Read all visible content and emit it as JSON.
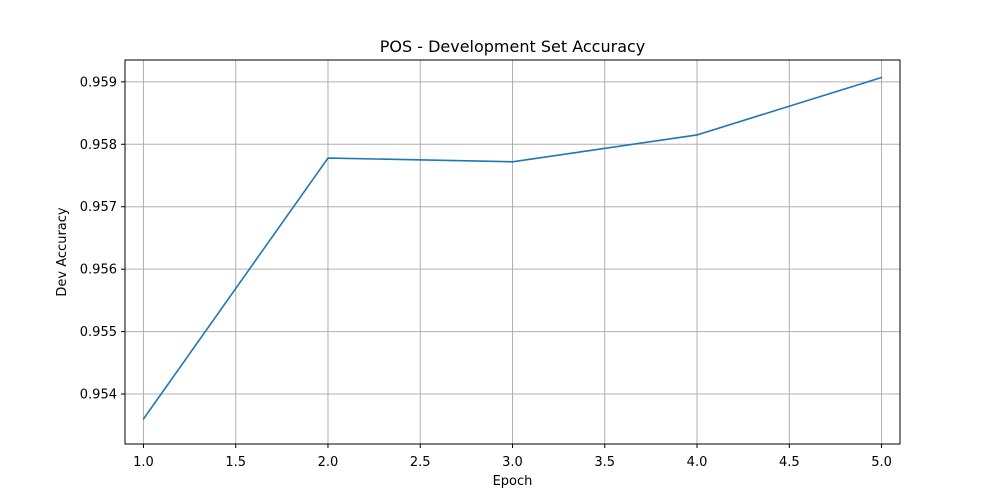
{
  "chart_data": {
    "type": "line",
    "title": "POS - Development Set Accuracy",
    "xlabel": "Epoch",
    "ylabel": "Dev Accuracy",
    "x": [
      1,
      2,
      3,
      4,
      5
    ],
    "series": [
      {
        "values": [
          0.9536,
          0.95778,
          0.95772,
          0.95815,
          0.95907
        ],
        "color": "#1f77b4"
      }
    ],
    "xlim": [
      0.9,
      5.1
    ],
    "ylim": [
      0.9532,
      0.95935
    ],
    "xticks": [
      1.0,
      1.5,
      2.0,
      2.5,
      3.0,
      3.5,
      4.0,
      4.5,
      5.0
    ],
    "xtick_labels": [
      "1.0",
      "1.5",
      "2.0",
      "2.5",
      "3.0",
      "3.5",
      "4.0",
      "4.5",
      "5.0"
    ],
    "yticks": [
      0.954,
      0.955,
      0.956,
      0.957,
      0.958,
      0.959
    ],
    "ytick_labels": [
      "0.954",
      "0.955",
      "0.956",
      "0.957",
      "0.958",
      "0.959"
    ],
    "grid": true,
    "legend": "none"
  }
}
